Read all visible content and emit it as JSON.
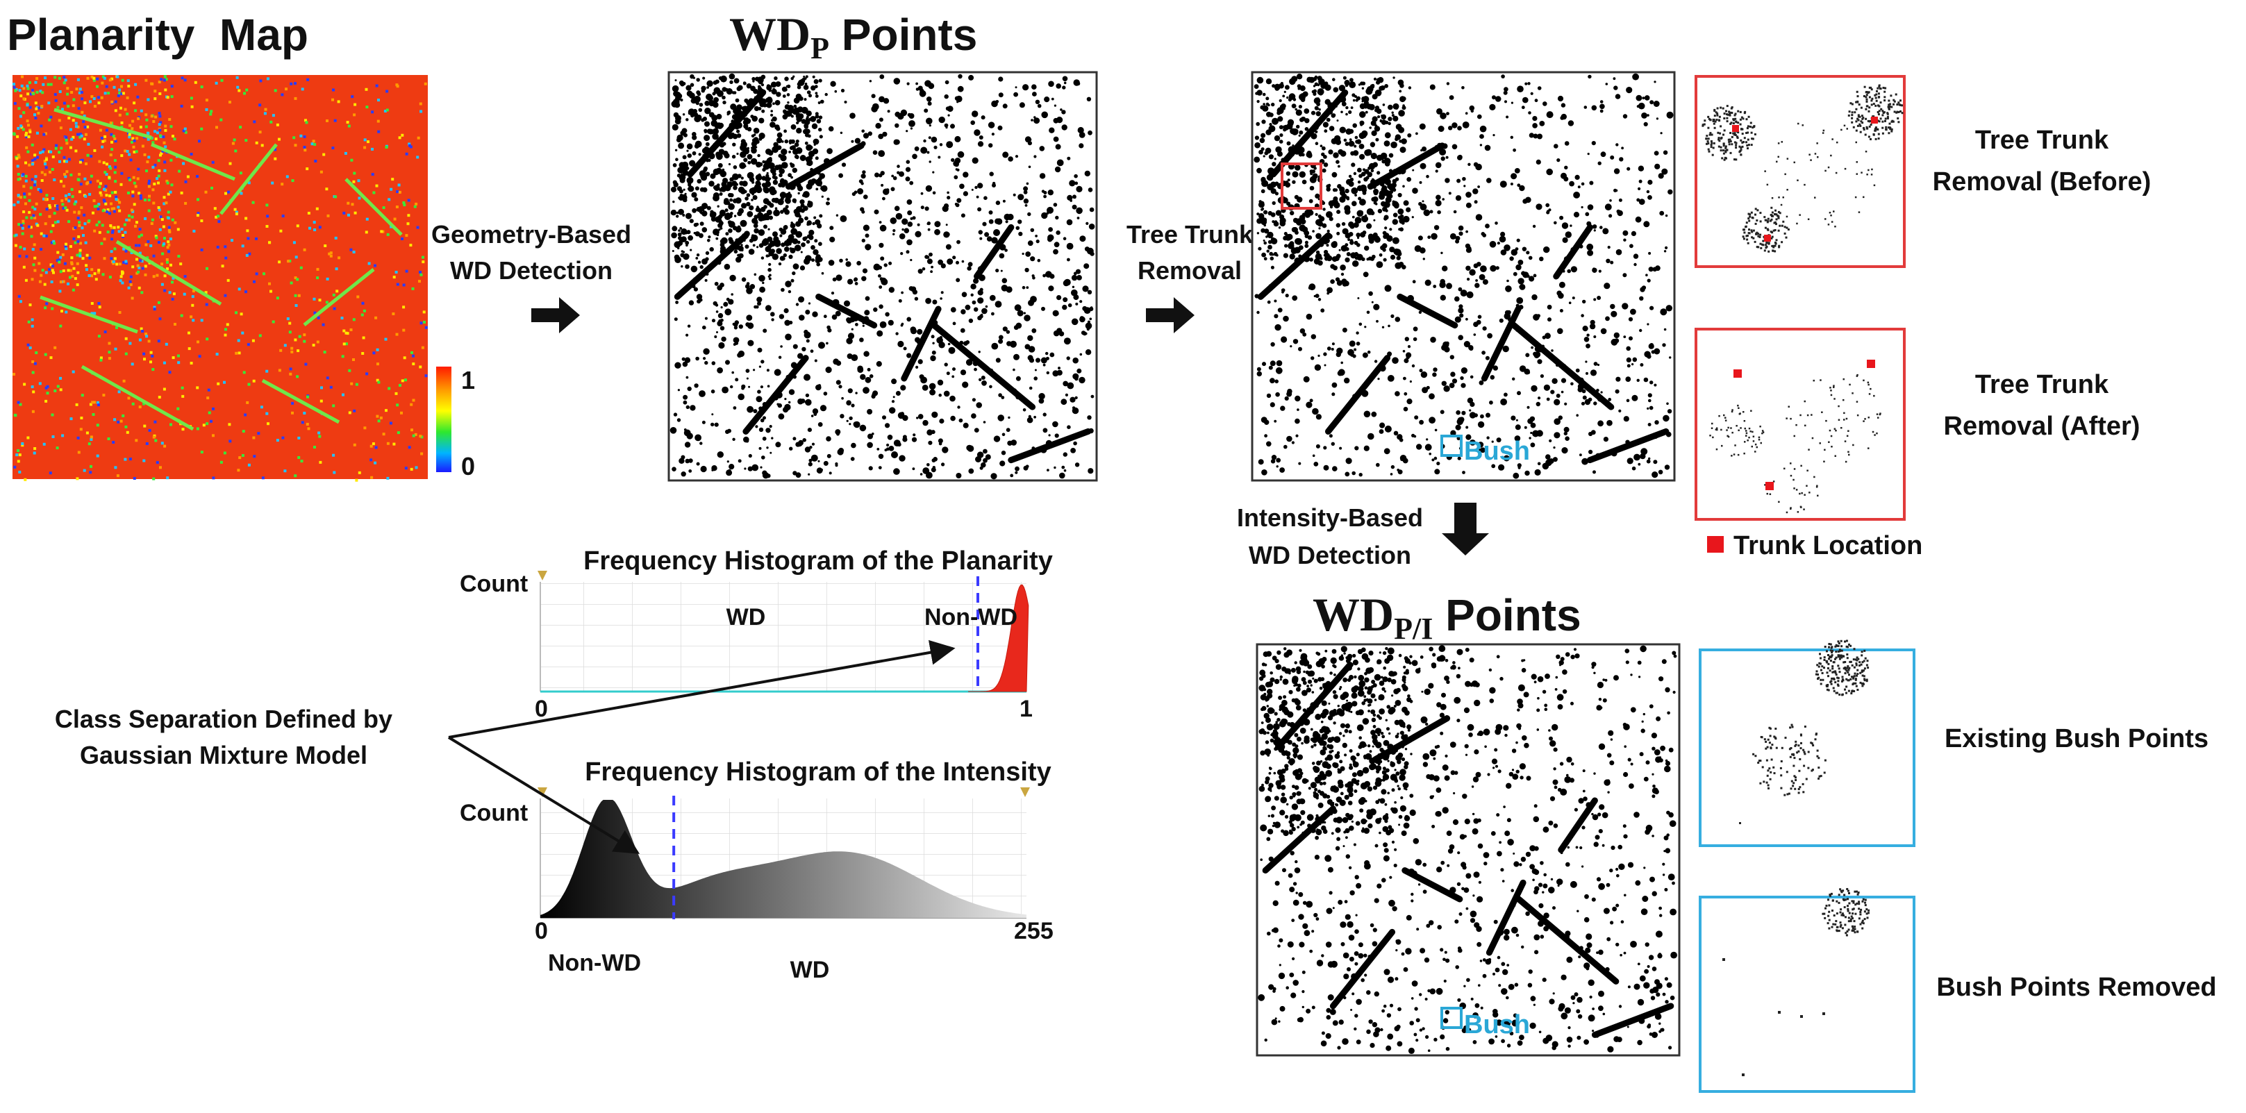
{
  "titles": {
    "planarity_map": "Planarity  Map",
    "wdp_points": {
      "main": "WD",
      "sub": "P",
      "rest": " Points"
    },
    "wdpi_points": {
      "main": "WD",
      "sub": "P/I",
      "rest": " Points"
    }
  },
  "colorbar": {
    "max_label": "1",
    "min_label": "0"
  },
  "steps": {
    "geometry": {
      "line1": "Geometry-Based",
      "line2": "WD Detection"
    },
    "trunk": {
      "line1": "Tree Trunk",
      "line2": "Removal"
    },
    "intensity": {
      "line1": "Intensity-Based",
      "line2": "WD Detection"
    }
  },
  "bush_label": "Bush",
  "side_panels": {
    "trunk_before": {
      "line1": "Tree Trunk",
      "line2": "Removal (Before)"
    },
    "trunk_after": {
      "line1": "Tree Trunk",
      "line2": "Removal (After)"
    },
    "trunk_legend": "Trunk Location",
    "bush_existing": "Existing Bush Points",
    "bush_removed": "Bush Points Removed"
  },
  "gmm_note": {
    "line1": "Class Separation Defined by",
    "line2": "Gaussian Mixture Model"
  },
  "histograms": {
    "planarity": {
      "title": "Frequency Histogram of the Planarity",
      "y_label": "Count",
      "x_min": "0",
      "x_max": "1",
      "left_class": "WD",
      "right_class": "Non-WD",
      "threshold": 0.9
    },
    "intensity": {
      "title": "Frequency Histogram of the Intensity",
      "y_label": "Count",
      "x_min": "0",
      "x_max": "255",
      "left_class": "Non-WD",
      "right_class": "WD",
      "threshold": 70
    }
  },
  "colors": {
    "frame_red": "#e23b3b",
    "frame_blue": "#36aee0",
    "bush_blue": "#2aa7d6",
    "threshold": "#3b3bff",
    "planarity_hist_fill": "#e8281c"
  }
}
